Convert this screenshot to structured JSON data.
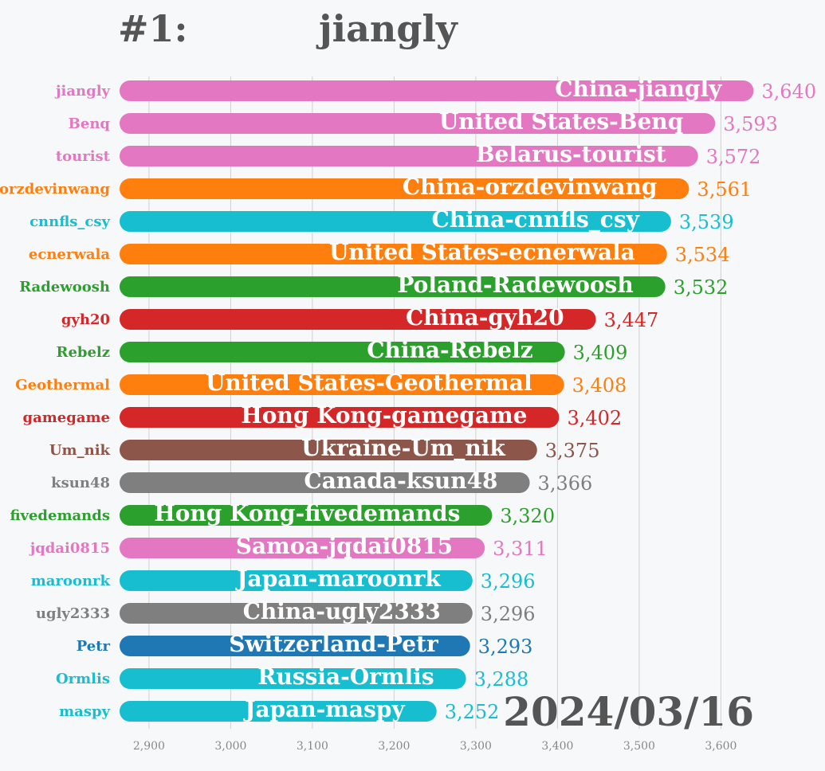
{
  "header": {
    "rank_label": "#1:",
    "leader": "jiangly"
  },
  "date_label": "2024/03/16",
  "colors": {
    "pink": "#e377c2",
    "orange": "#ff7f0e",
    "cyan": "#17becf",
    "green": "#2ca02c",
    "red": "#d62728",
    "brown": "#8c564b",
    "gray": "#7f7f7f",
    "blue": "#1f77b4",
    "grid": "#d0d0d0",
    "title": "#555555"
  },
  "chart_data": {
    "type": "bar",
    "orientation": "horizontal",
    "xlim": [
      2864,
      3664
    ],
    "x_ticks": [
      2900,
      3000,
      3100,
      3200,
      3300,
      3400,
      3500,
      3600
    ],
    "x_tick_labels": [
      "2,900",
      "3,000",
      "3,100",
      "3,200",
      "3,300",
      "3,400",
      "3,500",
      "3,600"
    ],
    "grid": true,
    "bars": [
      {
        "name": "jiangly",
        "label": "China-jiangly",
        "value": 3640,
        "value_label": "3,640",
        "color": "pink"
      },
      {
        "name": "Benq",
        "label": "United States-Benq",
        "value": 3593,
        "value_label": "3,593",
        "color": "pink"
      },
      {
        "name": "tourist",
        "label": "Belarus-tourist",
        "value": 3572,
        "value_label": "3,572",
        "color": "pink"
      },
      {
        "name": "orzdevinwang",
        "label": "China-orzdevinwang",
        "value": 3561,
        "value_label": "3,561",
        "color": "orange"
      },
      {
        "name": "cnnfls_csy",
        "label": "China-cnnfls_csy",
        "value": 3539,
        "value_label": "3,539",
        "color": "cyan"
      },
      {
        "name": "ecnerwala",
        "label": "United States-ecnerwala",
        "value": 3534,
        "value_label": "3,534",
        "color": "orange"
      },
      {
        "name": "Radewoosh",
        "label": "Poland-Radewoosh",
        "value": 3532,
        "value_label": "3,532",
        "color": "green"
      },
      {
        "name": "gyh20",
        "label": "China-gyh20",
        "value": 3447,
        "value_label": "3,447",
        "color": "red"
      },
      {
        "name": "Rebelz",
        "label": "China-Rebelz",
        "value": 3409,
        "value_label": "3,409",
        "color": "green"
      },
      {
        "name": "Geothermal",
        "label": "United States-Geothermal",
        "value": 3408,
        "value_label": "3,408",
        "color": "orange"
      },
      {
        "name": "gamegame",
        "label": "Hong Kong-gamegame",
        "value": 3402,
        "value_label": "3,402",
        "color": "red"
      },
      {
        "name": "Um_nik",
        "label": "Ukraine-Um_nik",
        "value": 3375,
        "value_label": "3,375",
        "color": "brown"
      },
      {
        "name": "ksun48",
        "label": "Canada-ksun48",
        "value": 3366,
        "value_label": "3,366",
        "color": "gray"
      },
      {
        "name": "fivedemands",
        "label": "Hong Kong-fivedemands",
        "value": 3320,
        "value_label": "3,320",
        "color": "green"
      },
      {
        "name": "jqdai0815",
        "label": "Samoa-jqdai0815",
        "value": 3311,
        "value_label": "3,311",
        "color": "pink"
      },
      {
        "name": "maroonrk",
        "label": "Japan-maroonrk",
        "value": 3296,
        "value_label": "3,296",
        "color": "cyan"
      },
      {
        "name": "ugly2333",
        "label": "China-ugly2333",
        "value": 3296,
        "value_label": "3,296",
        "color": "gray"
      },
      {
        "name": "Petr",
        "label": "Switzerland-Petr",
        "value": 3293,
        "value_label": "3,293",
        "color": "blue"
      },
      {
        "name": "Ormlis",
        "label": "Russia-Ormlis",
        "value": 3288,
        "value_label": "3,288",
        "color": "cyan"
      },
      {
        "name": "maspy",
        "label": "Japan-maspy",
        "value": 3252,
        "value_label": "3,252",
        "color": "cyan"
      }
    ]
  }
}
